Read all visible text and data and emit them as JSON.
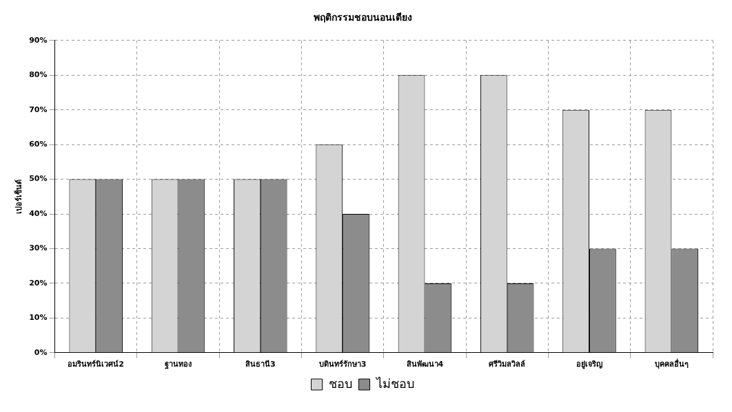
{
  "chart_data": {
    "type": "bar",
    "title": "พฤติกรรมชอบนอนเตียง",
    "ylabel": "เปอร์เซ็นต์",
    "categories": [
      "อมรินทร์นิเวศน์2",
      "ฐานทอง",
      "สินธานี3",
      "บดินทร์รักษา3",
      "สินพัฒนา4",
      "ศรีวิมลวิลล์",
      "อยู่เจริญ",
      "บุคคลอื่นๆ"
    ],
    "series": [
      {
        "name": "ชอบ",
        "color": "#d4d4d4",
        "values": [
          50,
          50,
          50,
          60,
          80,
          80,
          70,
          70
        ]
      },
      {
        "name": "ไม่ชอบ",
        "color": "#8c8c8c",
        "values": [
          50,
          50,
          50,
          40,
          20,
          20,
          30,
          30
        ]
      }
    ],
    "ylim": [
      0,
      90
    ],
    "yticks": [
      {
        "value": 0,
        "label": "0%"
      },
      {
        "value": 10,
        "label": "10%"
      },
      {
        "value": 20,
        "label": "20%"
      },
      {
        "value": 30,
        "label": "30%"
      },
      {
        "value": 40,
        "label": "40%"
      },
      {
        "value": 50,
        "label": "50%"
      },
      {
        "value": 60,
        "label": "60%"
      },
      {
        "value": 70,
        "label": "70%"
      },
      {
        "value": 80,
        "label": "80%"
      },
      {
        "value": 90,
        "label": "90%"
      }
    ],
    "grid": true,
    "legend": "bottom"
  }
}
